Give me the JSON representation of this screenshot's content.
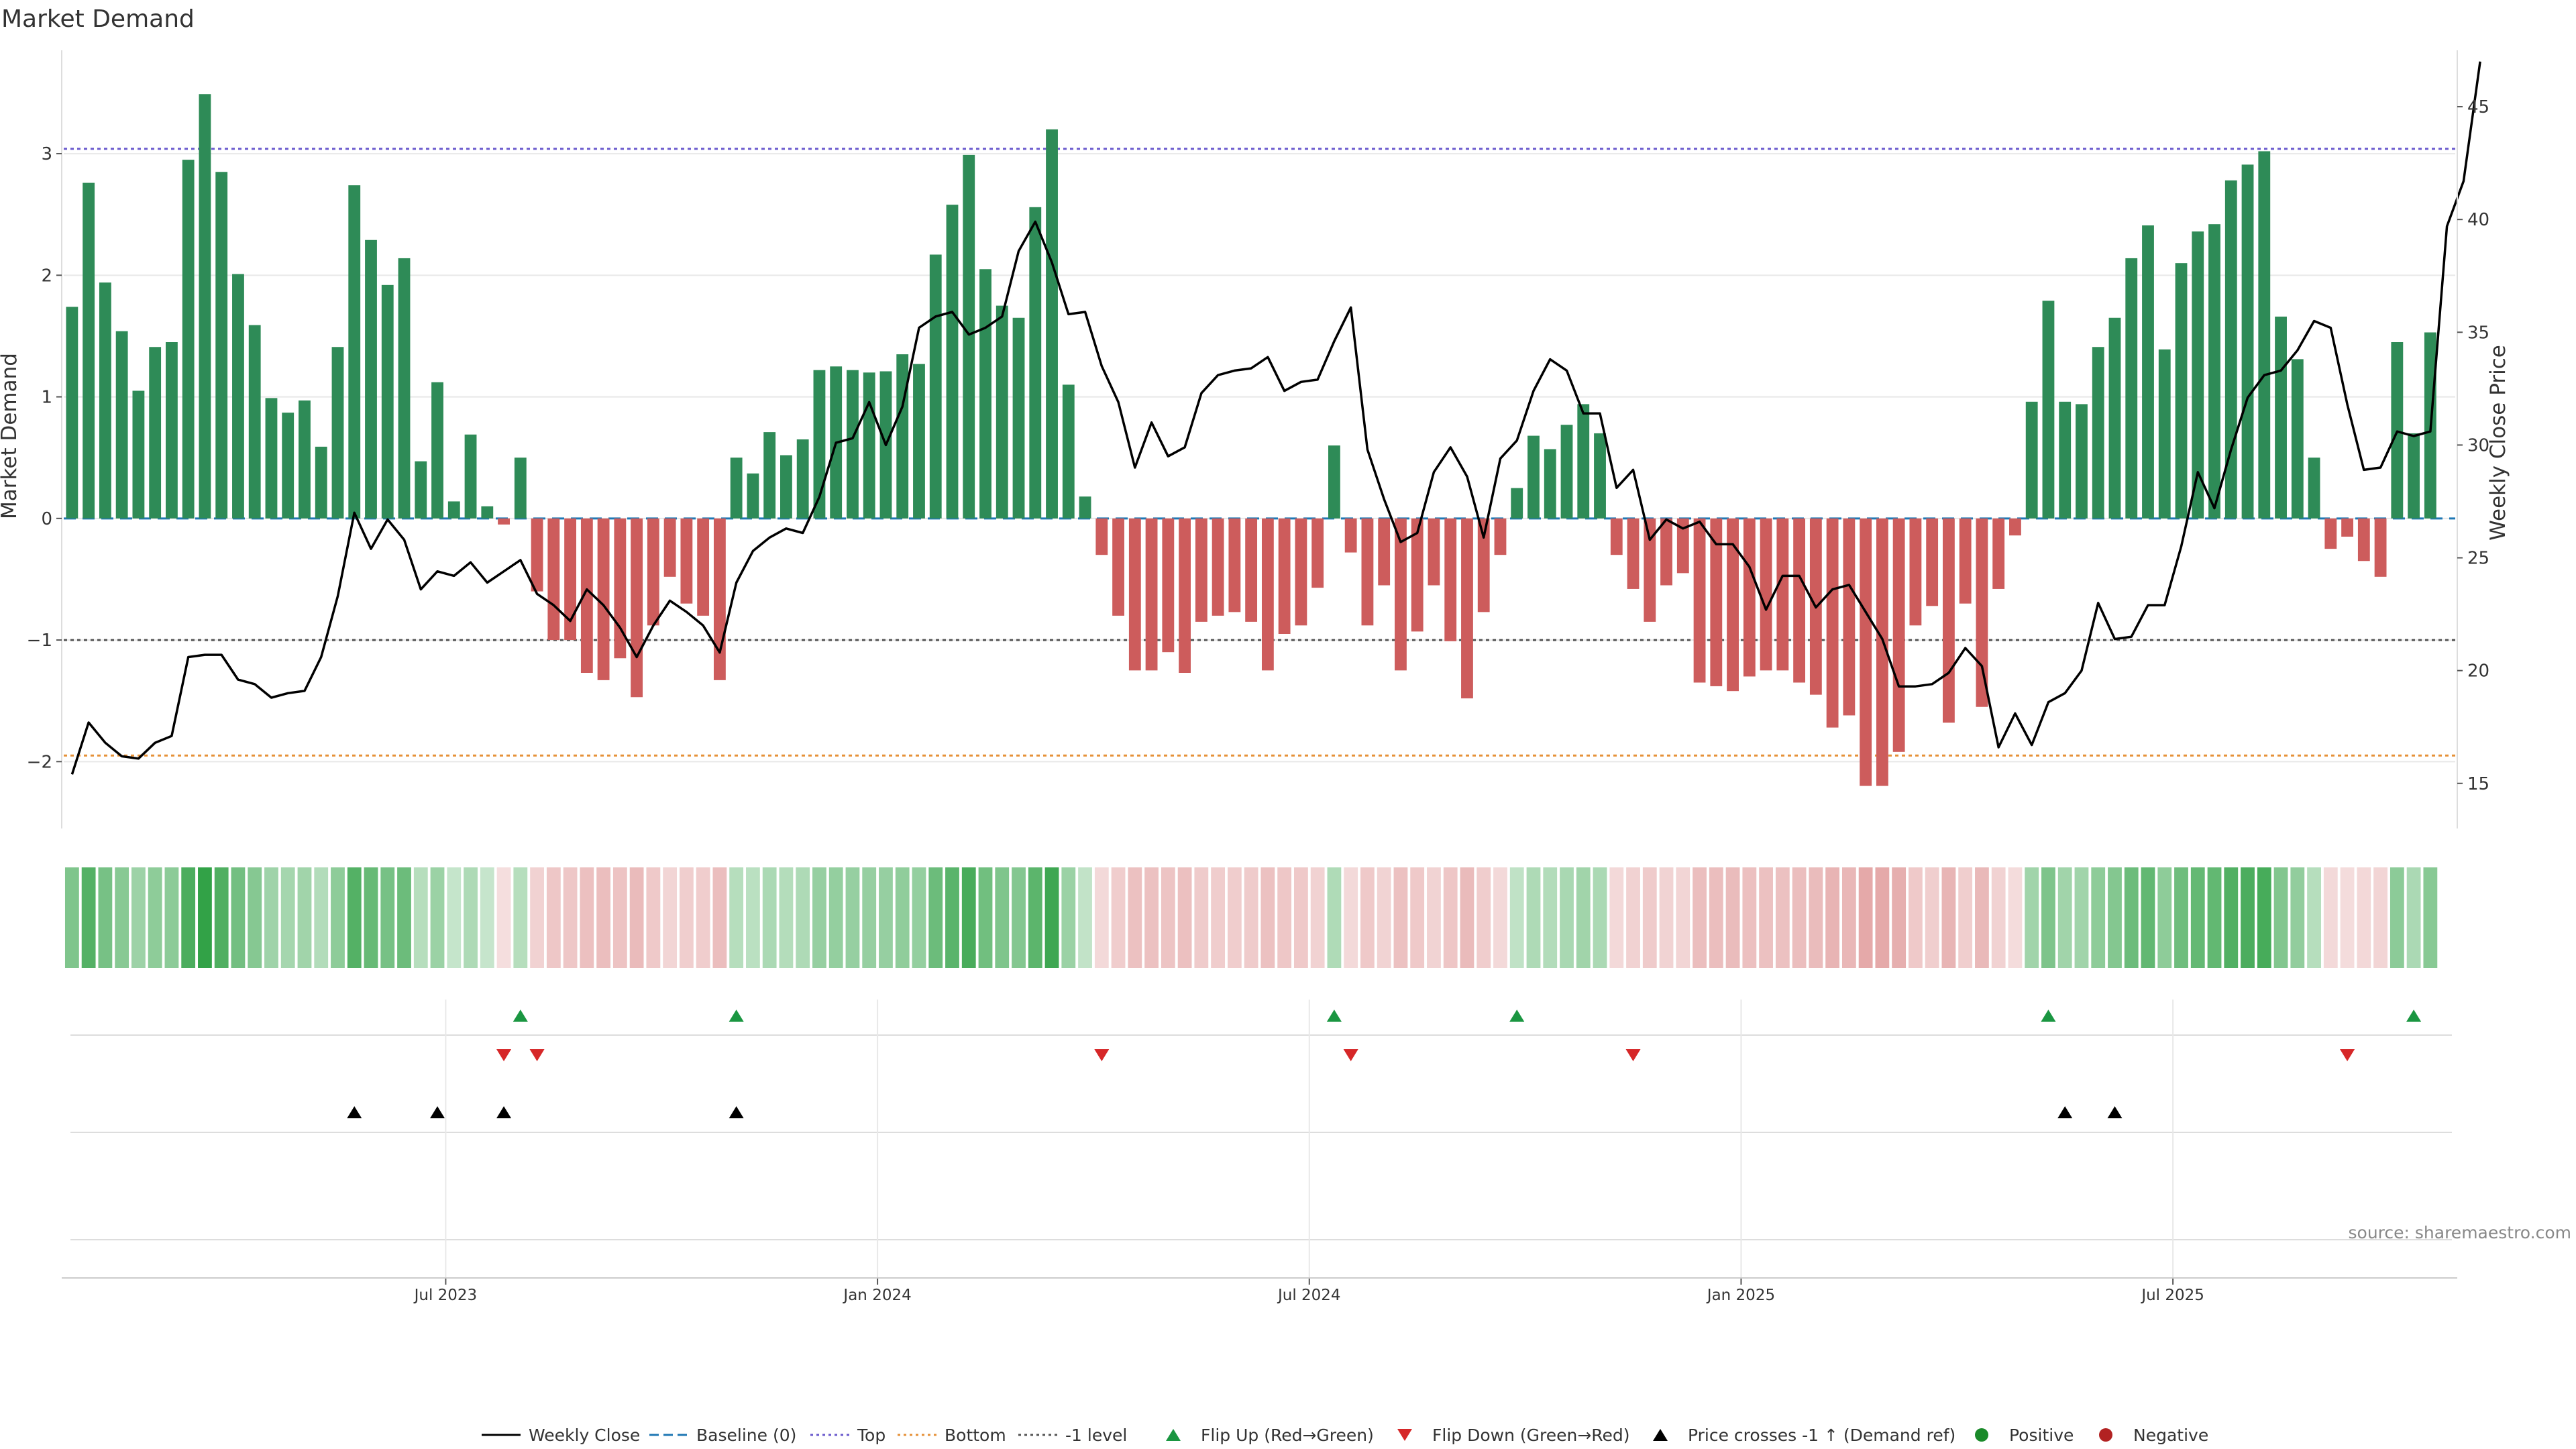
{
  "chart_data": {
    "type": "bar",
    "title": "Market Demand",
    "ylabel_left": "Market Demand",
    "ylabel_right": "Weekly Close Price",
    "ylim_left": [
      -2.55,
      3.85
    ],
    "ylim_right": [
      13.0,
      47.5
    ],
    "yticks_left": [
      3,
      2,
      1,
      0,
      -1,
      -2
    ],
    "ytick_labels_left": [
      "3",
      "2",
      "1",
      "0",
      "−1",
      "−2"
    ],
    "yticks_right": [
      45,
      40,
      35,
      30,
      25,
      20,
      15
    ],
    "ytick_labels_right": [
      "45",
      "40",
      "35",
      "30",
      "25",
      "20",
      "15"
    ],
    "reference_levels": {
      "top": 3.04,
      "baseline": 0,
      "minus_one": -1,
      "bottom": -1.95
    },
    "x_dates": [
      "Jul 2023",
      "Jan 2024",
      "Jul 2024",
      "Jan 2025",
      "Jul 2025"
    ],
    "x_date_positions": [
      23,
      49,
      75,
      101,
      127
    ],
    "weeks": 144,
    "demand": [
      1.74,
      2.76,
      1.94,
      1.54,
      1.05,
      1.41,
      1.45,
      2.95,
      3.49,
      2.85,
      2.01,
      1.59,
      0.99,
      0.87,
      0.97,
      0.59,
      1.41,
      2.74,
      2.29,
      1.92,
      2.14,
      0.47,
      1.12,
      0.14,
      0.69,
      0.1,
      -0.05,
      0.5,
      -0.6,
      -1.0,
      -1.0,
      -1.27,
      -1.33,
      -1.15,
      -1.47,
      -0.88,
      -0.48,
      -0.7,
      -0.8,
      -1.33,
      0.5,
      0.37,
      0.71,
      0.52,
      0.65,
      1.22,
      1.25,
      1.22,
      1.2,
      1.21,
      1.35,
      1.27,
      2.17,
      2.58,
      2.99,
      2.05,
      1.75,
      1.65,
      2.56,
      3.2,
      1.1,
      0.18,
      -0.3,
      -0.8,
      -1.25,
      -1.25,
      -1.1,
      -1.27,
      -0.85,
      -0.8,
      -0.77,
      -0.85,
      -1.25,
      -0.95,
      -0.88,
      -0.57,
      0.6,
      -0.28,
      -0.88,
      -0.55,
      -1.25,
      -0.93,
      -0.55,
      -1.01,
      -1.48,
      -0.77,
      -0.3,
      0.25,
      0.68,
      0.57,
      0.77,
      0.94,
      0.7,
      -0.3,
      -0.58,
      -0.85,
      -0.55,
      -0.45,
      -1.35,
      -1.38,
      -1.42,
      -1.3,
      -1.25,
      -1.25,
      -1.35,
      -1.45,
      -1.72,
      -1.62,
      -2.2,
      -2.2,
      -1.92,
      -0.88,
      -0.72,
      -1.68,
      -0.7,
      -1.55,
      -0.58,
      -0.14,
      0.96,
      1.79,
      0.96,
      0.94,
      1.41,
      1.65,
      2.14,
      2.41,
      1.39,
      2.1,
      2.36,
      2.42,
      2.78,
      2.91,
      3.02,
      1.66,
      1.31,
      0.5,
      -0.25,
      -0.15,
      -0.35,
      -0.48,
      1.45,
      0.7,
      1.53
    ],
    "weekly_close": [
      15.4,
      17.7,
      16.8,
      16.2,
      16.1,
      16.8,
      17.1,
      20.6,
      20.7,
      20.7,
      19.6,
      19.4,
      18.8,
      19.0,
      19.1,
      20.6,
      23.3,
      27.0,
      25.4,
      26.7,
      25.8,
      23.6,
      24.4,
      24.2,
      24.8,
      23.9,
      24.4,
      24.9,
      23.4,
      22.9,
      22.2,
      23.6,
      22.9,
      21.9,
      20.6,
      22.0,
      23.1,
      22.6,
      22.0,
      20.8,
      23.9,
      25.3,
      25.9,
      26.3,
      26.1,
      27.7,
      30.1,
      30.3,
      31.9,
      30.0,
      31.7,
      35.2,
      35.7,
      35.9,
      34.9,
      35.2,
      35.7,
      38.6,
      39.9,
      38.1,
      35.8,
      35.9,
      33.5,
      31.9,
      29.0,
      31.0,
      29.5,
      29.9,
      32.3,
      33.1,
      33.3,
      33.4,
      33.9,
      32.4,
      32.8,
      32.9,
      34.6,
      36.1,
      29.8,
      27.6,
      25.7,
      26.1,
      28.8,
      29.9,
      28.6,
      25.9,
      29.4,
      30.2,
      32.4,
      33.8,
      33.3,
      31.4,
      31.4,
      28.1,
      28.9,
      25.8,
      26.7,
      26.3,
      26.6,
      25.6,
      25.6,
      24.6,
      22.7,
      24.2,
      24.2,
      22.8,
      23.6,
      23.8,
      22.6,
      21.4,
      19.3,
      19.3,
      19.4,
      19.9,
      21.0,
      20.2,
      16.6,
      18.1,
      16.7,
      18.6,
      19.0,
      20.0,
      23.0,
      21.4,
      21.5,
      22.9,
      22.9,
      25.5,
      28.8,
      27.2,
      29.8,
      32.1,
      33.1,
      33.3,
      34.2,
      35.5,
      35.2,
      31.8,
      28.9,
      29.0,
      30.6,
      30.4,
      30.6,
      39.7,
      41.7,
      47.0
    ],
    "heat_strip": [
      1.74,
      2.76,
      1.94,
      1.54,
      1.05,
      1.41,
      1.45,
      2.95,
      3.49,
      2.85,
      2.01,
      1.59,
      0.99,
      0.87,
      0.97,
      0.59,
      1.41,
      2.74,
      2.29,
      1.92,
      2.14,
      0.47,
      1.12,
      0.14,
      0.69,
      0.1,
      -0.05,
      0.5,
      -0.6,
      -1.0,
      -1.0,
      -1.27,
      -1.33,
      -1.15,
      -1.47,
      -0.88,
      -0.48,
      -0.7,
      -0.8,
      -1.33,
      0.5,
      0.37,
      0.71,
      0.52,
      0.65,
      1.22,
      1.25,
      1.22,
      1.2,
      1.21,
      1.35,
      1.27,
      2.17,
      2.58,
      2.99,
      2.05,
      1.75,
      1.65,
      2.56,
      3.2,
      1.1,
      0.18,
      -0.3,
      -0.8,
      -1.25,
      -1.25,
      -1.1,
      -1.27,
      -0.85,
      -0.8,
      -0.77,
      -0.85,
      -1.25,
      -0.95,
      -0.88,
      -0.57,
      0.6,
      -0.28,
      -0.88,
      -0.55,
      -1.25,
      -0.93,
      -0.55,
      -1.01,
      -1.48,
      -0.77,
      -0.3,
      0.25,
      0.68,
      0.57,
      0.77,
      0.94,
      0.7,
      -0.3,
      -0.58,
      -0.85,
      -0.55,
      -0.45,
      -1.35,
      -1.38,
      -1.42,
      -1.3,
      -1.25,
      -1.25,
      -1.35,
      -1.45,
      -1.72,
      -1.62,
      -2.2,
      -2.2,
      -1.92,
      -0.88,
      -0.72,
      -1.68,
      -0.7,
      -1.55,
      -0.58,
      -0.14,
      0.96,
      1.79,
      0.96,
      0.94,
      1.41,
      1.65,
      2.14,
      2.41,
      1.39,
      2.1,
      2.36,
      2.42,
      2.78,
      2.91,
      3.02,
      1.66,
      1.31,
      0.5,
      -0.25,
      -0.15,
      -0.35,
      -0.48,
      1.45,
      0.7,
      1.53
    ],
    "flip_up_weeks": [
      27,
      40,
      76,
      87,
      119,
      141
    ],
    "flip_down_weeks": [
      26,
      28,
      62,
      77,
      94,
      137
    ],
    "price_cross_weeks": [
      17,
      22,
      26,
      40,
      120,
      123
    ],
    "colors": {
      "positive": "#2e8b57",
      "negative": "#cd5c5c",
      "price_line": "#000000",
      "baseline": "#1f77b4",
      "top": "#6a5acd",
      "bottom": "#e69138",
      "minus_one": "#555555",
      "flip_up": "#1a9641",
      "flip_down": "#d62728",
      "cross": "#000000",
      "positive_dot": "#1a8a2a",
      "negative_dot": "#b22222",
      "grid": "#e8e8e8"
    },
    "legend": [
      {
        "label": "Weekly Close",
        "kind": "line-solid",
        "color": "#000000"
      },
      {
        "label": "Baseline (0)",
        "kind": "line-dashed",
        "color": "#1f77b4"
      },
      {
        "label": "Top",
        "kind": "line-dotted",
        "color": "#6a5acd"
      },
      {
        "label": "Bottom",
        "kind": "line-dotted",
        "color": "#e69138"
      },
      {
        "label": "-1 level",
        "kind": "line-dotted",
        "color": "#555555"
      },
      {
        "label": "Flip Up (Red→Green)",
        "kind": "tri-up",
        "color": "#1a9641"
      },
      {
        "label": "Flip Down (Green→Red)",
        "kind": "tri-down",
        "color": "#d62728"
      },
      {
        "label": "Price crosses -1 ↑ (Demand ref)",
        "kind": "tri-up",
        "color": "#000000"
      },
      {
        "label": "Positive",
        "kind": "dot",
        "color": "#1a8a2a"
      },
      {
        "label": "Negative",
        "kind": "dot",
        "color": "#b22222"
      }
    ],
    "source": "source: sharemaestro.com"
  }
}
